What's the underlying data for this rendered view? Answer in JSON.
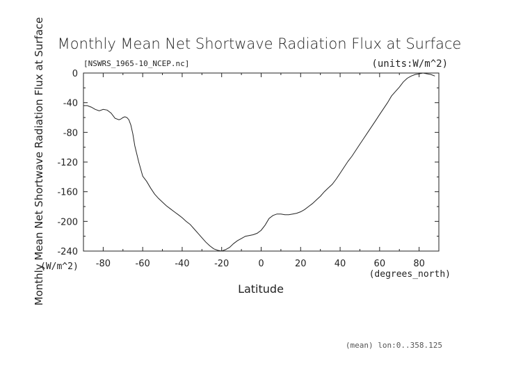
{
  "chart_data": {
    "type": "line",
    "title": "Monthly Mean Net Shortwave Radiation Flux at Surface",
    "subtitle_left": "[NSWRS_1965-10_NCEP.nc]",
    "subtitle_right": "(units:W/m^2)",
    "ylabel": "Monthly Mean Net Shortwave Radiation Flux at Surface",
    "ylabel_units": "(W/m^2)",
    "xlabel": "Latitude",
    "xlabel_units": "(degrees_north)",
    "footnote": "(mean) lon:0..358.125",
    "xlim": [
      -90,
      90
    ],
    "ylim": [
      -240,
      0
    ],
    "xticks": [
      -80,
      -60,
      -40,
      -20,
      0,
      20,
      40,
      60,
      80
    ],
    "yticks": [
      0,
      -40,
      -80,
      -120,
      -160,
      -200,
      -240
    ],
    "grid": false,
    "series": [
      {
        "x": [
          -90,
          -88,
          -86,
          -84,
          -82,
          -80,
          -78,
          -76,
          -74,
          -72,
          -71,
          -70,
          -69,
          -68,
          -67,
          -66,
          -65,
          -64,
          -62,
          -60,
          -58,
          -56,
          -54,
          -52,
          -50,
          -48,
          -46,
          -44,
          -42,
          -40,
          -38,
          -36,
          -34,
          -32,
          -30,
          -28,
          -26,
          -24,
          -22,
          -20,
          -18,
          -16,
          -14,
          -12,
          -10,
          -8,
          -6,
          -4,
          -2,
          0,
          2,
          4,
          6,
          8,
          10,
          12,
          14,
          16,
          18,
          20,
          22,
          24,
          26,
          28,
          30,
          32,
          34,
          36,
          38,
          40,
          42,
          44,
          46,
          48,
          50,
          52,
          54,
          56,
          58,
          60,
          62,
          64,
          66,
          68,
          70,
          72,
          74,
          76,
          78,
          80,
          82,
          84,
          86,
          88
        ],
        "values": [
          -44,
          -44,
          -46,
          -49,
          -51,
          -49,
          -50,
          -54,
          -61,
          -63,
          -62,
          -60,
          -59,
          -60,
          -63,
          -70,
          -82,
          -98,
          -120,
          -139,
          -146,
          -155,
          -163,
          -169,
          -174,
          -179,
          -183,
          -187,
          -191,
          -195,
          -200,
          -204,
          -210,
          -216,
          -222,
          -228,
          -233,
          -237,
          -239,
          -240,
          -238,
          -235,
          -230,
          -226,
          -223,
          -220,
          -219,
          -218,
          -216,
          -212,
          -205,
          -196,
          -192,
          -190,
          -190,
          -191,
          -191,
          -190,
          -189,
          -187,
          -184,
          -180,
          -176,
          -171,
          -166,
          -160,
          -155,
          -150,
          -143,
          -135,
          -127,
          -119,
          -112,
          -104,
          -96,
          -88,
          -80,
          -72,
          -64,
          -56,
          -48,
          -40,
          -31,
          -25,
          -19,
          -12,
          -7,
          -4,
          -2,
          -1,
          0,
          -1,
          -2,
          -4
        ]
      }
    ]
  }
}
